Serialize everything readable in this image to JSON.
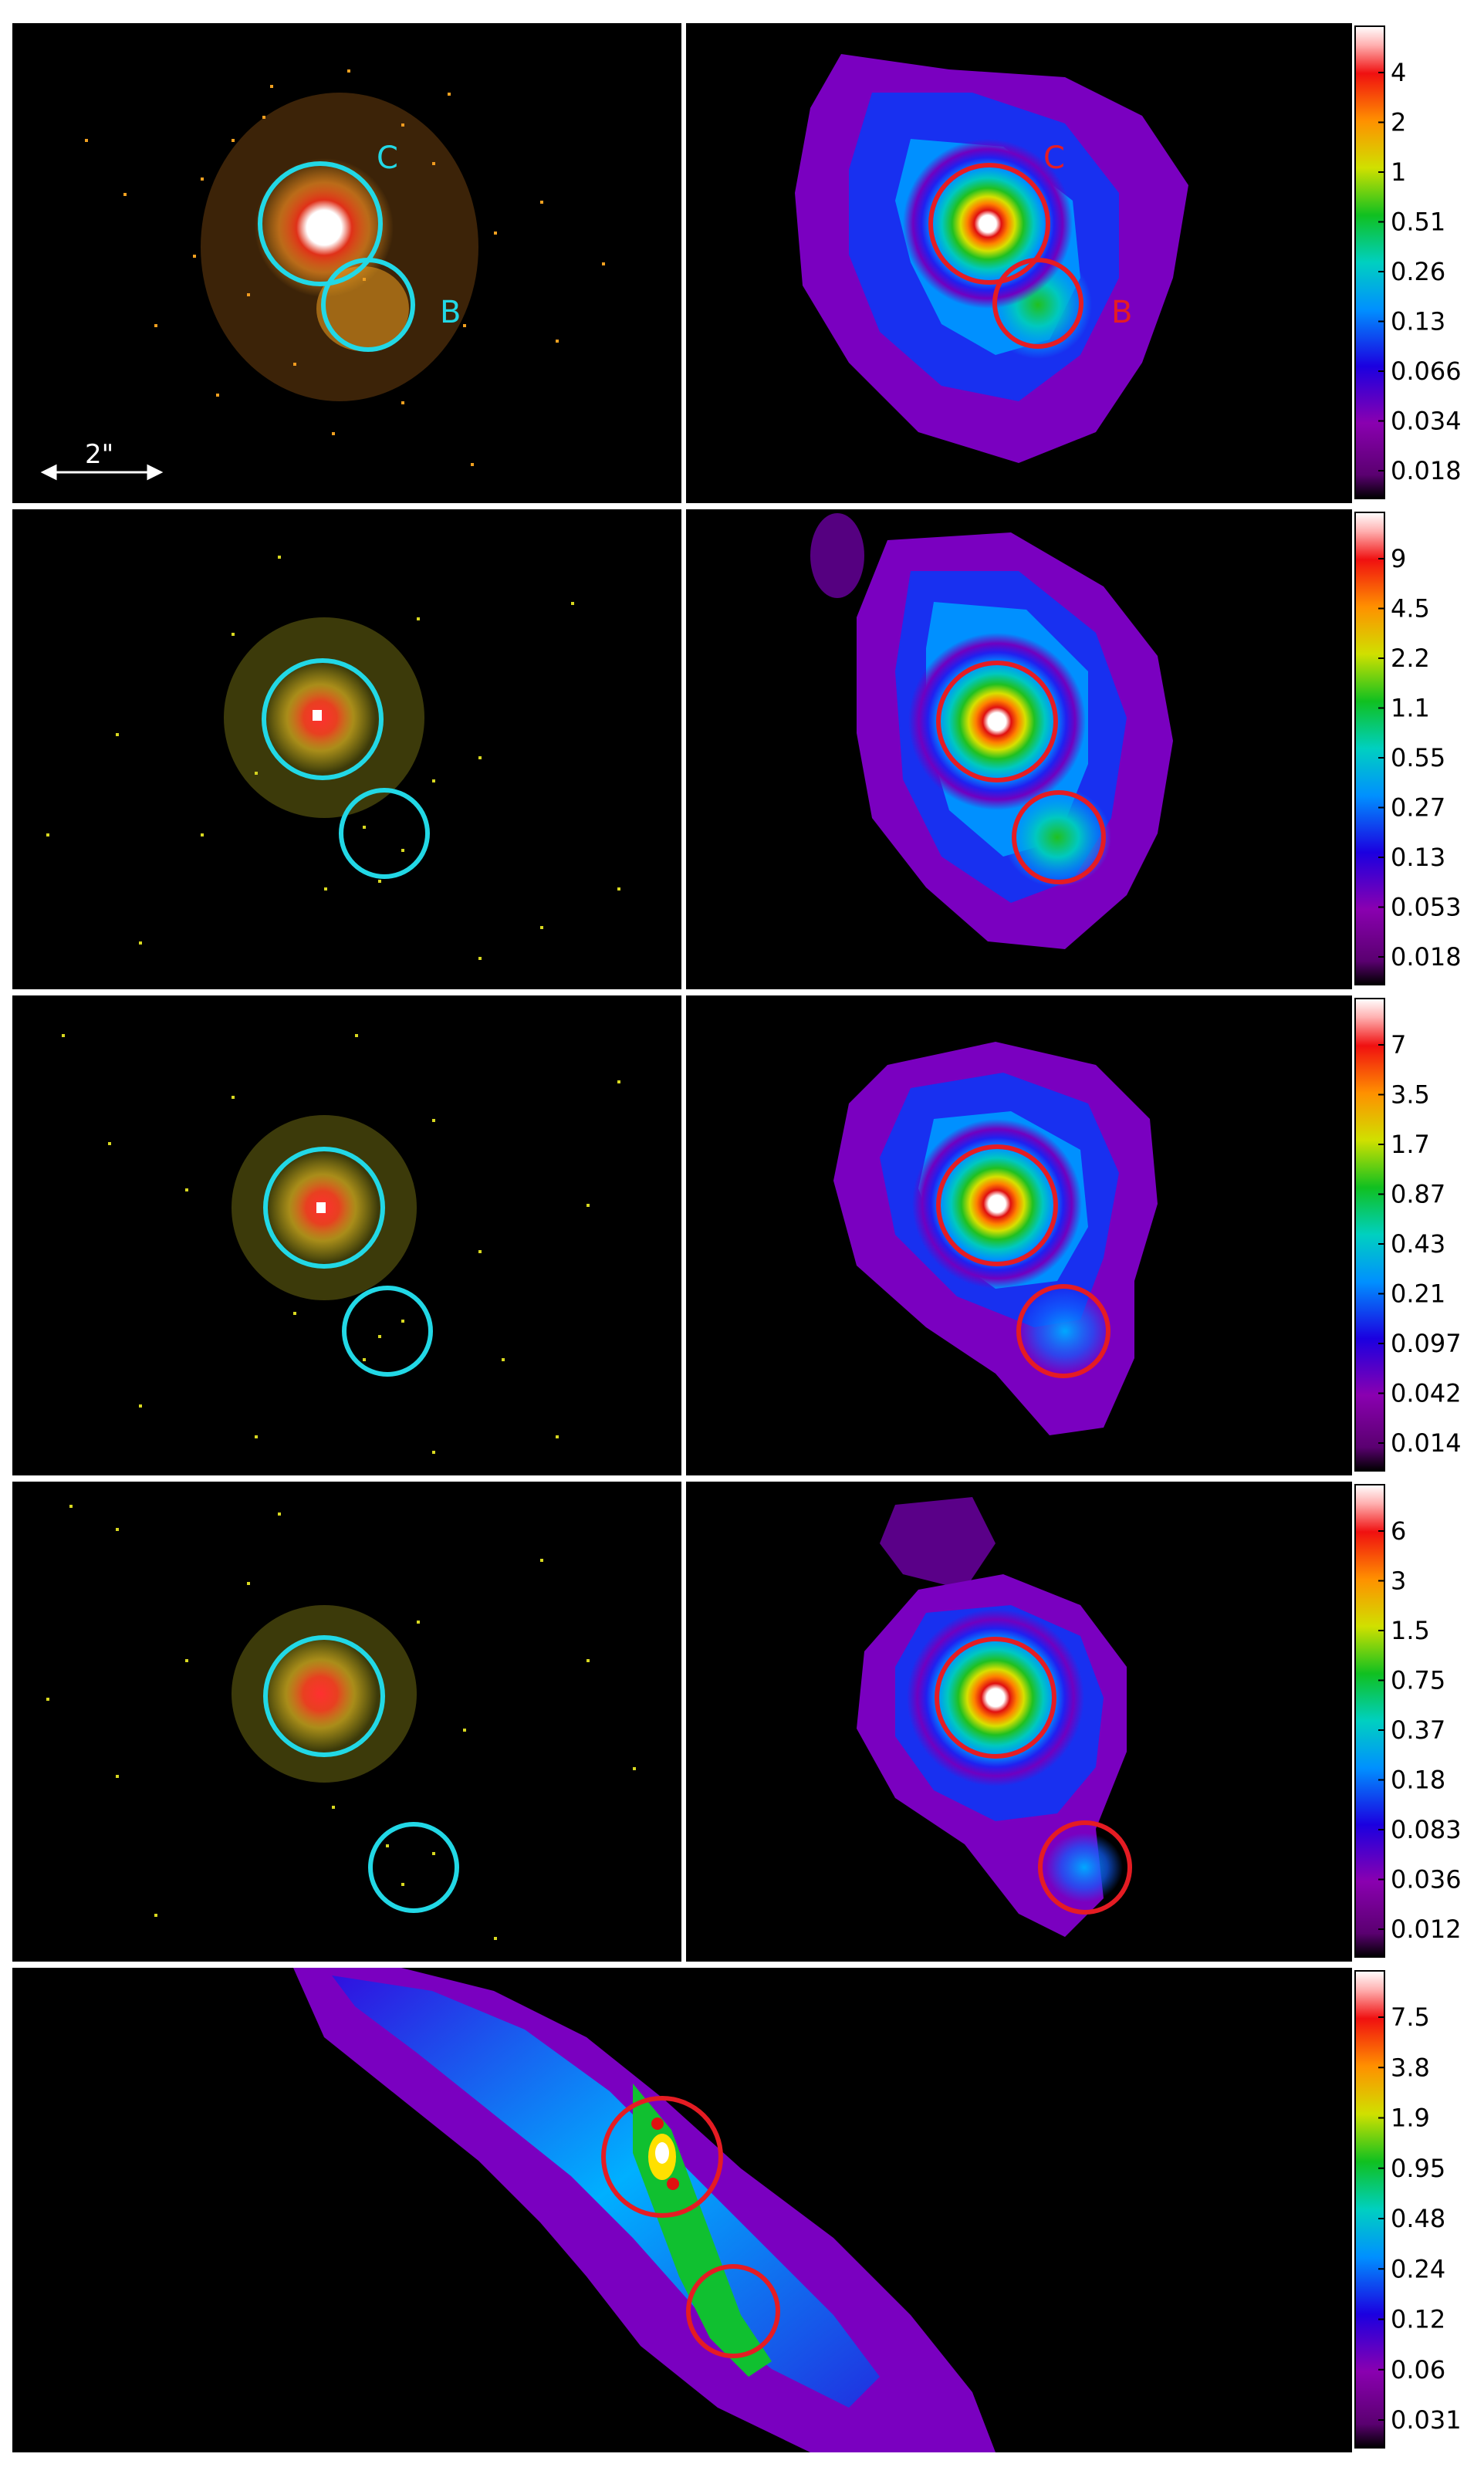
{
  "colors": {
    "background": "#000000",
    "separator": "#ffffff",
    "counts_circle": "#22d8e6",
    "map_circle": "#e51c23"
  },
  "icons": {
    "scale_bar": "double-headed-arrow-icon"
  },
  "scale_bar_label": "2\"",
  "region_labels": [
    "C",
    "B"
  ],
  "colorbars": [
    {
      "ticks": [
        "4",
        "2",
        "1",
        "0.51",
        "0.26",
        "0.13",
        "0.066",
        "0.034",
        "0.018"
      ]
    },
    {
      "ticks": [
        "9",
        "4.5",
        "2.2",
        "1.1",
        "0.55",
        "0.27",
        "0.13",
        "0.053",
        "0.018"
      ]
    },
    {
      "ticks": [
        "7",
        "3.5",
        "1.7",
        "0.87",
        "0.43",
        "0.21",
        "0.097",
        "0.042",
        "0.014"
      ]
    },
    {
      "ticks": [
        "6",
        "3",
        "1.5",
        "0.75",
        "0.37",
        "0.18",
        "0.083",
        "0.036",
        "0.012"
      ]
    },
    {
      "ticks": [
        "7.5",
        "3.8",
        "1.9",
        "0.95",
        "0.48",
        "0.24",
        "0.12",
        "0.06",
        "0.031"
      ]
    }
  ]
}
